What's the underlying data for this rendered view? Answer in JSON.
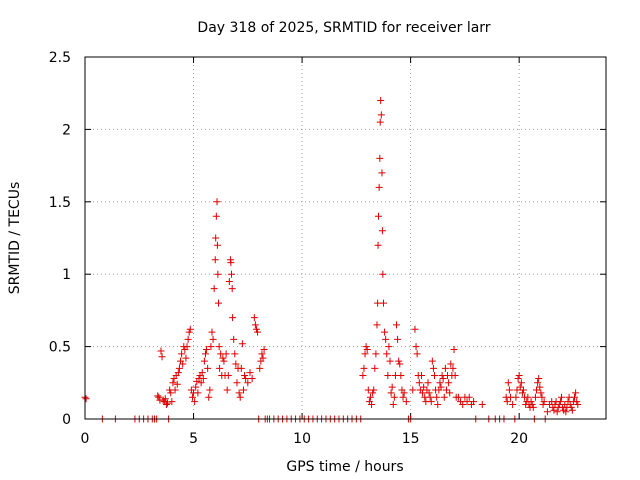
{
  "chart_data": {
    "type": "scatter",
    "title": "Day 318 of 2025, SRMTID for receiver larr",
    "xlabel": "GPS time / hours",
    "ylabel": "SRMTID / TECUs",
    "xlim": [
      0,
      24
    ],
    "ylim": [
      0,
      2.5
    ],
    "xticks": [
      0,
      5,
      10,
      15,
      20
    ],
    "yticks": [
      0,
      0.5,
      1,
      1.5,
      2,
      2.5
    ],
    "xtick_labels": [
      "0",
      "5",
      "10",
      "15",
      "20"
    ],
    "ytick_labels": [
      "0",
      "0.5",
      "1",
      "1.5",
      "2",
      "2.5"
    ],
    "grid": true,
    "marker": "plus",
    "color": "#e00000",
    "series": [
      {
        "name": "SRMTID",
        "x": [
          0.0,
          0.05,
          0.8,
          1.4,
          2.3,
          2.5,
          2.7,
          2.9,
          3.1,
          3.2,
          3.3,
          3.35,
          3.4,
          3.45,
          3.5,
          3.55,
          3.6,
          3.65,
          3.7,
          3.75,
          3.8,
          3.85,
          3.9,
          3.95,
          4.0,
          4.05,
          4.1,
          4.15,
          4.2,
          4.25,
          4.3,
          4.35,
          4.4,
          4.45,
          4.5,
          4.55,
          4.6,
          4.65,
          4.7,
          4.75,
          4.8,
          4.85,
          4.9,
          4.95,
          5.0,
          5.05,
          5.1,
          5.15,
          5.2,
          5.25,
          5.3,
          5.35,
          5.4,
          5.45,
          5.5,
          5.55,
          5.6,
          5.65,
          5.7,
          5.75,
          5.8,
          5.85,
          5.9,
          5.95,
          6.0,
          6.02,
          6.05,
          6.08,
          6.1,
          6.12,
          6.15,
          6.18,
          6.2,
          6.25,
          6.3,
          6.35,
          6.4,
          6.45,
          6.5,
          6.55,
          6.6,
          6.65,
          6.7,
          6.72,
          6.75,
          6.78,
          6.8,
          6.85,
          6.9,
          6.95,
          7.0,
          7.05,
          7.1,
          7.15,
          7.2,
          7.25,
          7.3,
          7.35,
          7.4,
          7.5,
          7.6,
          7.7,
          7.8,
          7.85,
          7.9,
          7.95,
          8.0,
          8.05,
          8.1,
          8.15,
          8.2,
          8.25,
          8.3,
          8.4,
          8.5,
          8.7,
          8.9,
          9.1,
          9.3,
          9.5,
          9.7,
          9.9,
          10.1,
          10.3,
          10.5,
          10.7,
          10.9,
          11.1,
          11.3,
          11.5,
          11.7,
          11.9,
          12.1,
          12.3,
          12.5,
          12.7,
          12.8,
          12.85,
          12.9,
          12.95,
          13.0,
          13.05,
          13.1,
          13.15,
          13.2,
          13.25,
          13.3,
          13.35,
          13.4,
          13.45,
          13.48,
          13.5,
          13.52,
          13.55,
          13.58,
          13.6,
          13.62,
          13.65,
          13.68,
          13.7,
          13.72,
          13.75,
          13.8,
          13.85,
          13.9,
          13.95,
          14.0,
          14.05,
          14.1,
          14.15,
          14.2,
          14.25,
          14.3,
          14.35,
          14.4,
          14.45,
          14.5,
          14.55,
          14.6,
          14.65,
          14.7,
          14.8,
          14.9,
          15.0,
          15.1,
          15.2,
          15.25,
          15.3,
          15.35,
          15.4,
          15.45,
          15.5,
          15.55,
          15.6,
          15.65,
          15.7,
          15.75,
          15.8,
          15.85,
          15.9,
          15.95,
          16.0,
          16.05,
          16.1,
          16.15,
          16.2,
          16.25,
          16.3,
          16.35,
          16.4,
          16.45,
          16.5,
          16.55,
          16.6,
          16.65,
          16.7,
          16.75,
          16.8,
          16.85,
          16.9,
          16.95,
          17.0,
          17.05,
          17.1,
          17.2,
          17.3,
          17.4,
          17.5,
          17.6,
          17.7,
          17.8,
          17.9,
          18.0,
          18.3,
          18.6,
          18.9,
          19.1,
          19.3,
          19.4,
          19.45,
          19.5,
          19.55,
          19.6,
          19.7,
          19.8,
          19.85,
          19.9,
          19.95,
          20.0,
          20.05,
          20.1,
          20.15,
          20.2,
          20.25,
          20.3,
          20.35,
          20.4,
          20.45,
          20.5,
          20.55,
          20.6,
          20.65,
          20.7,
          20.75,
          20.8,
          20.85,
          20.9,
          20.95,
          21.0,
          21.05,
          21.1,
          21.15,
          21.2,
          21.3,
          21.4,
          21.5,
          21.55,
          21.6,
          21.65,
          21.7,
          21.75,
          21.8,
          21.85,
          21.9,
          21.95,
          22.0,
          22.05,
          22.1,
          22.15,
          22.2,
          22.25,
          22.3,
          22.35,
          22.4,
          22.45,
          22.5,
          22.55,
          22.6,
          22.65,
          22.7
        ],
        "y": [
          0.15,
          0.14,
          0.0,
          0.0,
          0.0,
          0.0,
          0.0,
          0.0,
          0.0,
          0.0,
          0.0,
          0.16,
          0.15,
          0.13,
          0.47,
          0.43,
          0.13,
          0.12,
          0.14,
          0.1,
          0.11,
          0.0,
          0.2,
          0.18,
          0.12,
          0.25,
          0.28,
          0.2,
          0.3,
          0.24,
          0.32,
          0.35,
          0.4,
          0.45,
          0.38,
          0.5,
          0.48,
          0.42,
          0.5,
          0.55,
          0.6,
          0.62,
          0.2,
          0.15,
          0.18,
          0.12,
          0.22,
          0.26,
          0.18,
          0.28,
          0.3,
          0.25,
          0.32,
          0.28,
          0.4,
          0.45,
          0.48,
          0.35,
          0.15,
          0.2,
          0.5,
          0.6,
          0.55,
          0.9,
          1.1,
          1.25,
          1.4,
          1.5,
          1.2,
          1.0,
          0.8,
          0.5,
          0.35,
          0.45,
          0.3,
          0.42,
          0.4,
          0.3,
          0.45,
          0.2,
          0.3,
          0.95,
          1.1,
          1.08,
          1.0,
          0.9,
          0.7,
          0.55,
          0.45,
          0.38,
          0.25,
          0.35,
          0.18,
          0.15,
          0.35,
          0.52,
          0.2,
          0.3,
          0.28,
          0.25,
          0.32,
          0.28,
          0.7,
          0.65,
          0.62,
          0.6,
          0.0,
          0.35,
          0.4,
          0.45,
          0.42,
          0.48,
          0.0,
          0.0,
          0.0,
          0.0,
          0.0,
          0.0,
          0.0,
          0.0,
          0.0,
          0.0,
          0.0,
          0.0,
          0.0,
          0.0,
          0.0,
          0.0,
          0.0,
          0.0,
          0.0,
          0.0,
          0.0,
          0.0,
          0.0,
          0.0,
          0.3,
          0.35,
          0.45,
          0.5,
          0.48,
          0.2,
          0.12,
          0.15,
          0.1,
          0.18,
          0.2,
          0.35,
          0.45,
          0.65,
          0.8,
          1.2,
          1.4,
          1.6,
          1.8,
          2.05,
          2.2,
          2.1,
          1.7,
          1.3,
          1.0,
          0.8,
          0.6,
          0.55,
          0.45,
          0.3,
          0.5,
          0.4,
          0.18,
          0.22,
          0.1,
          0.15,
          0.3,
          0.65,
          0.55,
          0.4,
          0.38,
          0.3,
          0.2,
          0.15,
          0.18,
          0.12,
          0.0,
          0.0,
          0.2,
          0.62,
          0.5,
          0.45,
          0.3,
          0.25,
          0.2,
          0.3,
          0.18,
          0.22,
          0.15,
          0.12,
          0.2,
          0.25,
          0.18,
          0.15,
          0.12,
          0.4,
          0.35,
          0.3,
          0.2,
          0.15,
          0.1,
          0.2,
          0.25,
          0.22,
          0.3,
          0.28,
          0.15,
          0.35,
          0.2,
          0.3,
          0.25,
          0.18,
          0.38,
          0.3,
          0.35,
          0.48,
          0.3,
          0.15,
          0.15,
          0.12,
          0.1,
          0.15,
          0.12,
          0.15,
          0.1,
          0.12,
          0.0,
          0.1,
          0.0,
          0.0,
          0.0,
          0.0,
          0.15,
          0.12,
          0.25,
          0.2,
          0.15,
          0.1,
          0.0,
          0.15,
          0.2,
          0.28,
          0.3,
          0.22,
          0.25,
          0.18,
          0.2,
          0.15,
          0.1,
          0.12,
          0.15,
          0.1,
          0.08,
          0.12,
          0.1,
          0.08,
          0.0,
          0.15,
          0.2,
          0.25,
          0.28,
          0.22,
          0.18,
          0.15,
          0.1,
          0.12,
          0.0,
          0.05,
          0.1,
          0.12,
          0.08,
          0.06,
          0.1,
          0.12,
          0.05,
          0.08,
          0.1,
          0.12,
          0.15,
          0.08,
          0.06,
          0.1,
          0.05,
          0.08,
          0.12,
          0.15,
          0.1,
          0.08,
          0.06,
          0.12,
          0.15,
          0.18,
          0.12,
          0.1
        ]
      }
    ]
  }
}
